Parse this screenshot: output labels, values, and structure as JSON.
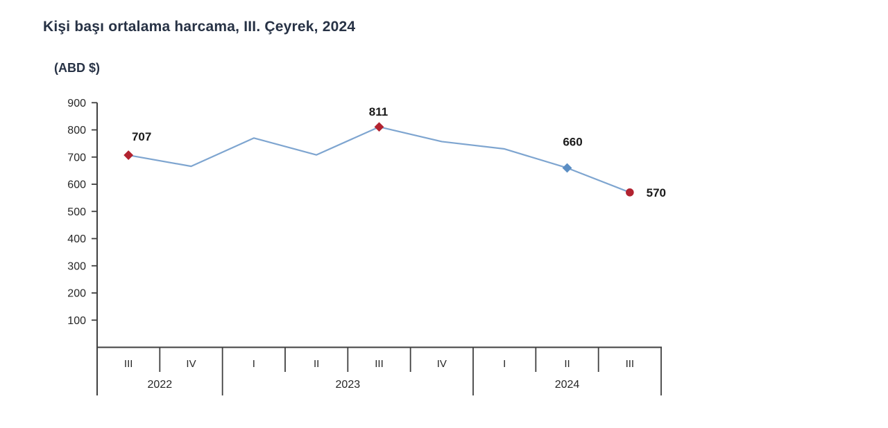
{
  "title": "Kişi başı ortalama harcama, III. Çeyrek, 2024",
  "unit_label": "(ABD $)",
  "colors": {
    "line": "#7ea5d0",
    "marker_red": "#b22330",
    "marker_blue": "#5b8ec4",
    "axis": "#3f3f3f",
    "axis_text": "#262626",
    "title_text": "#273245",
    "data_label_text": "#1a1a1a"
  },
  "chart_data": {
    "type": "line",
    "title": "Kişi başı ortalama harcama, III. Çeyrek, 2024",
    "ylabel": "(ABD $)",
    "xlabel": "",
    "ylim": [
      0,
      900
    ],
    "yticks": [
      900,
      800,
      700,
      600,
      500,
      400,
      300,
      200,
      100
    ],
    "grid": false,
    "legend": false,
    "x_groups": [
      {
        "year": "2022",
        "quarters": [
          "III",
          "IV"
        ]
      },
      {
        "year": "2023",
        "quarters": [
          "I",
          "II",
          "III",
          "IV"
        ]
      },
      {
        "year": "2024",
        "quarters": [
          "I",
          "II",
          "III"
        ]
      }
    ],
    "categories": [
      "2022 III",
      "2022 IV",
      "2023 I",
      "2023 II",
      "2023 III",
      "2023 IV",
      "2024 I",
      "2024 II",
      "2024 III"
    ],
    "values": [
      707,
      666,
      770,
      708,
      811,
      757,
      730,
      660,
      570
    ],
    "labeled_points": [
      {
        "index": 0,
        "value": 707,
        "marker": "red"
      },
      {
        "index": 4,
        "value": 811,
        "marker": "red"
      },
      {
        "index": 7,
        "value": 660,
        "marker": "blue"
      },
      {
        "index": 8,
        "value": 570,
        "marker": "red"
      }
    ]
  }
}
